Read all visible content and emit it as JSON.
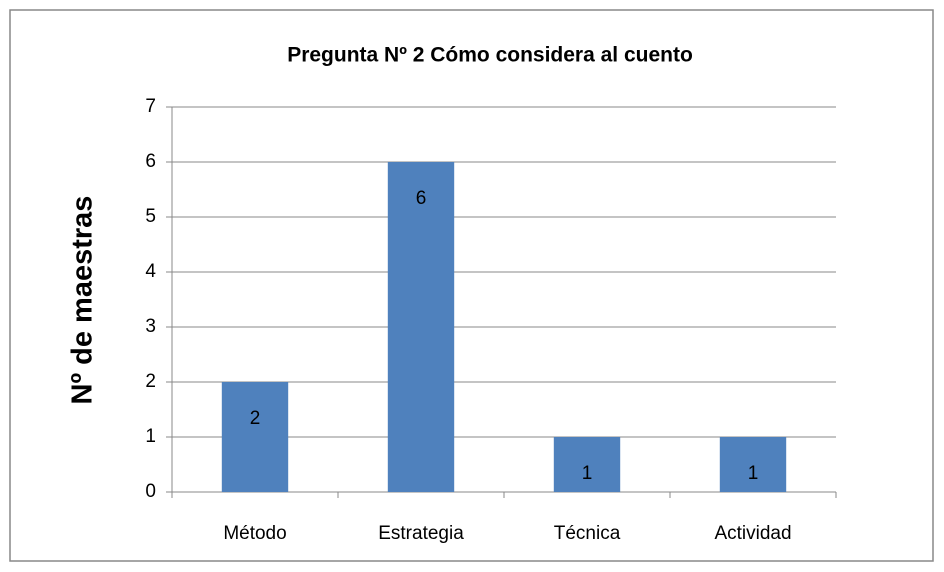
{
  "chart_data": {
    "type": "bar",
    "title": "Pregunta Nº 2 Cómo considera al cuento",
    "y_label": "Nº de maestras",
    "categories": [
      "Método",
      "Estrategia",
      "Técnica",
      "Actividad"
    ],
    "values": [
      2,
      6,
      1,
      1
    ],
    "color": "#4f81bd",
    "ylim": [
      0,
      7
    ],
    "yticks": [
      0,
      1,
      2,
      3,
      4,
      5,
      6,
      7
    ],
    "grid": true,
    "data_labels": true
  }
}
